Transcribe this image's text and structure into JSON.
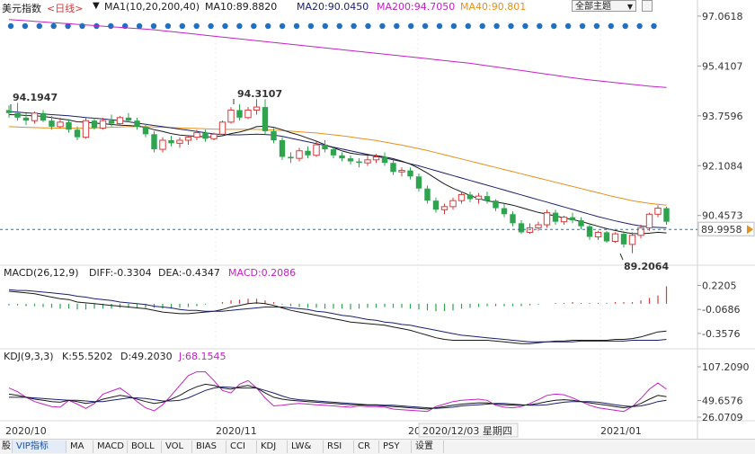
{
  "header": {
    "symbol": "美元指数",
    "period": "<日线>",
    "ma_label": "MA1(10,20,200,40)",
    "ma10": "MA10:89.8820",
    "ma20": "MA20:90.0450",
    "ma200": "MA200:94.7050",
    "ma40": "MA40:90.801",
    "dropdown": "全部主题",
    "dropdown_icon": "triangle-down-icon"
  },
  "colors": {
    "up": "#d63b3b",
    "down": "#2ea44f",
    "ma10": "#1a1a1a",
    "ma20": "#1b1f6e",
    "ma200": "#c520c5",
    "ma40": "#e8901a",
    "dots": "#1f6fc2",
    "current": "#1f6fc2",
    "dif": "#1a1a1a",
    "dea": "#1b1f6e",
    "k": "#1a1a1a",
    "d": "#1b1f6e",
    "j": "#c520c5"
  },
  "price_axis": [
    "97.0618",
    "95.4107",
    "93.7596",
    "92.1084",
    "90.4573"
  ],
  "current_price": "89.9958",
  "annotations": {
    "high1": "94.1947",
    "high2": "94.3107",
    "low": "89.2064"
  },
  "macd_panel": {
    "title": "MACD(26,12,9)",
    "diff": "DIFF:-0.3304",
    "dea": "DEA:-0.4347",
    "macd": "MACD:0.2086",
    "axis": [
      "0.2205",
      "-0.0686",
      "-0.3576"
    ]
  },
  "kdj_panel": {
    "title": "KDJ(9,3,3)",
    "k": "K:55.5202",
    "d": "D:49.2030",
    "j": "J:68.1545",
    "axis": [
      "107.2090",
      "49.6576",
      "26.0709"
    ]
  },
  "x_axis": {
    "labels": [
      "2020/10",
      "2020/11",
      "20",
      "2021/01"
    ],
    "crosshair_label": "2020/12/03 星期四"
  },
  "tabs": [
    "股",
    "VIP指标",
    "MA",
    "MACD",
    "BOLL",
    "VOL",
    "BIAS",
    "CCI",
    "KDJ",
    "LW&",
    "RSI",
    "CR",
    "PSY",
    "设置"
  ],
  "chart_data": {
    "type": "candlestick",
    "y_range": [
      88.9,
      97.06
    ],
    "candles": [
      [
        93.95,
        94.1,
        93.7,
        93.85
      ],
      [
        93.85,
        94.19,
        93.6,
        93.7
      ],
      [
        93.7,
        93.85,
        93.45,
        93.6
      ],
      [
        93.6,
        93.9,
        93.5,
        93.85
      ],
      [
        93.85,
        93.95,
        93.55,
        93.6
      ],
      [
        93.6,
        93.75,
        93.3,
        93.4
      ],
      [
        93.4,
        93.7,
        93.35,
        93.55
      ],
      [
        93.55,
        93.65,
        93.2,
        93.3
      ],
      [
        93.3,
        93.4,
        92.95,
        93.05
      ],
      [
        93.05,
        93.7,
        93.0,
        93.6
      ],
      [
        93.6,
        93.7,
        93.3,
        93.35
      ],
      [
        93.35,
        93.7,
        93.3,
        93.6
      ],
      [
        93.6,
        93.8,
        93.4,
        93.5
      ],
      [
        93.5,
        93.75,
        93.45,
        93.7
      ],
      [
        93.7,
        93.85,
        93.55,
        93.6
      ],
      [
        93.6,
        93.7,
        93.3,
        93.4
      ],
      [
        93.4,
        93.5,
        93.05,
        93.15
      ],
      [
        93.15,
        93.25,
        92.55,
        92.65
      ],
      [
        92.65,
        93.05,
        92.55,
        92.95
      ],
      [
        92.95,
        93.1,
        92.75,
        92.85
      ],
      [
        92.85,
        93.05,
        92.7,
        92.95
      ],
      [
        92.95,
        93.1,
        92.8,
        93.05
      ],
      [
        93.05,
        93.3,
        92.95,
        93.2
      ],
      [
        93.2,
        93.3,
        92.9,
        93.0
      ],
      [
        93.0,
        93.2,
        92.95,
        93.15
      ],
      [
        93.15,
        93.6,
        93.1,
        93.55
      ],
      [
        93.55,
        94.05,
        93.5,
        93.95
      ],
      [
        93.95,
        94.15,
        93.6,
        93.7
      ],
      [
        93.7,
        94.05,
        93.65,
        93.95
      ],
      [
        93.95,
        94.31,
        93.8,
        94.05
      ],
      [
        94.05,
        94.31,
        93.15,
        93.25
      ],
      [
        93.25,
        93.35,
        92.85,
        92.95
      ],
      [
        92.95,
        93.05,
        92.3,
        92.4
      ],
      [
        92.4,
        92.55,
        92.2,
        92.35
      ],
      [
        92.35,
        92.7,
        92.25,
        92.6
      ],
      [
        92.6,
        92.75,
        92.35,
        92.45
      ],
      [
        92.45,
        92.9,
        92.4,
        92.8
      ],
      [
        92.8,
        92.95,
        92.55,
        92.65
      ],
      [
        92.65,
        92.75,
        92.35,
        92.45
      ],
      [
        92.45,
        92.55,
        92.25,
        92.35
      ],
      [
        92.35,
        92.45,
        92.15,
        92.25
      ],
      [
        92.25,
        92.35,
        92.05,
        92.2
      ],
      [
        92.2,
        92.45,
        92.1,
        92.3
      ],
      [
        92.3,
        92.5,
        92.2,
        92.4
      ],
      [
        92.4,
        92.55,
        92.1,
        92.2
      ],
      [
        92.2,
        92.3,
        91.8,
        91.9
      ],
      [
        91.9,
        92.05,
        91.75,
        91.95
      ],
      [
        91.95,
        92.05,
        91.65,
        91.75
      ],
      [
        91.75,
        91.85,
        91.25,
        91.35
      ],
      [
        91.35,
        91.45,
        90.85,
        90.95
      ],
      [
        90.95,
        91.05,
        90.55,
        90.65
      ],
      [
        90.65,
        90.85,
        90.5,
        90.75
      ],
      [
        90.75,
        91.05,
        90.65,
        90.95
      ],
      [
        90.95,
        91.25,
        90.85,
        91.15
      ],
      [
        91.15,
        91.25,
        90.9,
        91.0
      ],
      [
        91.0,
        91.2,
        90.85,
        91.1
      ],
      [
        91.1,
        91.25,
        90.85,
        90.95
      ],
      [
        90.95,
        91.0,
        90.6,
        90.7
      ],
      [
        90.7,
        90.85,
        90.4,
        90.5
      ],
      [
        90.5,
        90.6,
        90.1,
        90.2
      ],
      [
        90.2,
        90.3,
        89.85,
        89.9
      ],
      [
        89.9,
        90.2,
        89.85,
        90.05
      ],
      [
        90.05,
        90.25,
        89.95,
        90.15
      ],
      [
        90.15,
        90.65,
        90.05,
        90.55
      ],
      [
        90.55,
        90.65,
        90.15,
        90.25
      ],
      [
        90.25,
        90.45,
        90.15,
        90.4
      ],
      [
        90.4,
        90.55,
        90.2,
        90.3
      ],
      [
        90.3,
        90.4,
        90.0,
        90.1
      ],
      [
        90.1,
        90.2,
        89.65,
        89.75
      ],
      [
        89.75,
        89.95,
        89.65,
        89.9
      ],
      [
        89.9,
        89.95,
        89.55,
        89.6
      ],
      [
        89.6,
        89.9,
        89.55,
        89.85
      ],
      [
        89.85,
        89.95,
        89.4,
        89.5
      ],
      [
        89.5,
        89.9,
        89.21,
        89.8
      ],
      [
        89.8,
        90.15,
        89.7,
        90.05
      ],
      [
        90.05,
        90.55,
        89.95,
        90.5
      ],
      [
        90.5,
        90.8,
        90.4,
        90.7
      ],
      [
        90.7,
        90.75,
        90.15,
        90.25
      ]
    ],
    "ma10": [
      93.8,
      93.79,
      93.77,
      93.76,
      93.74,
      93.7,
      93.66,
      93.62,
      93.56,
      93.55,
      93.52,
      93.5,
      93.47,
      93.45,
      93.44,
      93.42,
      93.38,
      93.3,
      93.24,
      93.17,
      93.12,
      93.1,
      93.08,
      93.06,
      93.06,
      93.1,
      93.17,
      93.22,
      93.3,
      93.4,
      93.42,
      93.38,
      93.3,
      93.2,
      93.12,
      93.02,
      92.92,
      92.8,
      92.7,
      92.6,
      92.52,
      92.48,
      92.46,
      92.44,
      92.4,
      92.34,
      92.26,
      92.16,
      92.02,
      91.86,
      91.68,
      91.5,
      91.36,
      91.24,
      91.12,
      91.02,
      90.94,
      90.9,
      90.86,
      90.8,
      90.72,
      90.64,
      90.56,
      90.5,
      90.44,
      90.38,
      90.32,
      90.26,
      90.18,
      90.1,
      90.02,
      89.96,
      89.9,
      89.86,
      89.85,
      89.87,
      89.9,
      89.88
    ],
    "ma20": [
      93.9,
      93.88,
      93.86,
      93.84,
      93.82,
      93.8,
      93.78,
      93.76,
      93.73,
      93.7,
      93.68,
      93.66,
      93.63,
      93.6,
      93.56,
      93.52,
      93.48,
      93.44,
      93.4,
      93.36,
      93.32,
      93.28,
      93.24,
      93.2,
      93.16,
      93.14,
      93.13,
      93.13,
      93.14,
      93.15,
      93.14,
      93.12,
      93.08,
      93.02,
      92.96,
      92.9,
      92.84,
      92.78,
      92.72,
      92.66,
      92.6,
      92.54,
      92.48,
      92.42,
      92.36,
      92.3,
      92.24,
      92.17,
      92.1,
      92.02,
      91.94,
      91.86,
      91.78,
      91.7,
      91.62,
      91.54,
      91.46,
      91.38,
      91.3,
      91.22,
      91.14,
      91.06,
      90.98,
      90.9,
      90.82,
      90.74,
      90.66,
      90.58,
      90.5,
      90.42,
      90.35,
      90.28,
      90.22,
      90.16,
      90.11,
      90.08,
      90.06,
      90.05
    ],
    "ma40": [
      93.4,
      93.39,
      93.38,
      93.37,
      93.36,
      93.36,
      93.35,
      93.35,
      93.35,
      93.35,
      93.36,
      93.37,
      93.38,
      93.39,
      93.4,
      93.4,
      93.4,
      93.39,
      93.38,
      93.37,
      93.36,
      93.35,
      93.34,
      93.33,
      93.32,
      93.31,
      93.31,
      93.31,
      93.31,
      93.31,
      93.3,
      93.29,
      93.27,
      93.25,
      93.23,
      93.21,
      93.19,
      93.16,
      93.13,
      93.1,
      93.06,
      93.02,
      92.98,
      92.94,
      92.89,
      92.84,
      92.79,
      92.73,
      92.67,
      92.61,
      92.54,
      92.47,
      92.4,
      92.33,
      92.26,
      92.19,
      92.12,
      92.05,
      91.98,
      91.91,
      91.84,
      91.77,
      91.7,
      91.63,
      91.56,
      91.49,
      91.42,
      91.35,
      91.28,
      91.21,
      91.14,
      91.07,
      91.01,
      90.95,
      90.9,
      90.86,
      90.83,
      90.8
    ],
    "ma200": [
      96.95,
      96.93,
      96.91,
      96.89,
      96.87,
      96.85,
      96.83,
      96.81,
      96.79,
      96.77,
      96.75,
      96.73,
      96.71,
      96.69,
      96.67,
      96.65,
      96.63,
      96.61,
      96.58,
      96.55,
      96.52,
      96.49,
      96.46,
      96.43,
      96.4,
      96.37,
      96.34,
      96.31,
      96.28,
      96.25,
      96.22,
      96.19,
      96.16,
      96.13,
      96.1,
      96.07,
      96.04,
      96.01,
      95.98,
      95.95,
      95.92,
      95.89,
      95.86,
      95.83,
      95.8,
      95.77,
      95.74,
      95.71,
      95.68,
      95.65,
      95.62,
      95.59,
      95.56,
      95.53,
      95.5,
      95.46,
      95.42,
      95.38,
      95.34,
      95.3,
      95.26,
      95.22,
      95.18,
      95.14,
      95.1,
      95.06,
      95.02,
      94.98,
      94.95,
      94.92,
      94.89,
      94.86,
      94.83,
      94.8,
      94.77,
      94.74,
      94.72,
      94.7
    ],
    "macd": {
      "range": [
        -0.5,
        0.28
      ],
      "dif": [
        0.15,
        0.14,
        0.13,
        0.12,
        0.1,
        0.08,
        0.06,
        0.05,
        0.02,
        0.01,
        0.0,
        -0.01,
        -0.02,
        -0.03,
        -0.04,
        -0.05,
        -0.06,
        -0.08,
        -0.1,
        -0.11,
        -0.12,
        -0.12,
        -0.11,
        -0.1,
        -0.09,
        -0.07,
        -0.04,
        -0.02,
        0.0,
        0.01,
        0.0,
        -0.02,
        -0.05,
        -0.08,
        -0.1,
        -0.12,
        -0.14,
        -0.16,
        -0.18,
        -0.2,
        -0.22,
        -0.23,
        -0.24,
        -0.25,
        -0.26,
        -0.28,
        -0.3,
        -0.32,
        -0.35,
        -0.38,
        -0.41,
        -0.43,
        -0.44,
        -0.44,
        -0.44,
        -0.44,
        -0.44,
        -0.45,
        -0.46,
        -0.47,
        -0.48,
        -0.48,
        -0.47,
        -0.46,
        -0.45,
        -0.45,
        -0.44,
        -0.44,
        -0.44,
        -0.44,
        -0.44,
        -0.43,
        -0.43,
        -0.42,
        -0.4,
        -0.37,
        -0.34,
        -0.33
      ],
      "dea": [
        0.17,
        0.16,
        0.16,
        0.15,
        0.14,
        0.13,
        0.12,
        0.11,
        0.09,
        0.08,
        0.06,
        0.05,
        0.04,
        0.02,
        0.01,
        0.0,
        -0.01,
        -0.03,
        -0.04,
        -0.05,
        -0.07,
        -0.08,
        -0.08,
        -0.09,
        -0.09,
        -0.09,
        -0.08,
        -0.07,
        -0.06,
        -0.05,
        -0.04,
        -0.04,
        -0.04,
        -0.05,
        -0.06,
        -0.07,
        -0.09,
        -0.1,
        -0.12,
        -0.14,
        -0.15,
        -0.17,
        -0.19,
        -0.2,
        -0.22,
        -0.23,
        -0.25,
        -0.26,
        -0.28,
        -0.3,
        -0.32,
        -0.34,
        -0.36,
        -0.38,
        -0.39,
        -0.4,
        -0.41,
        -0.42,
        -0.43,
        -0.44,
        -0.45,
        -0.46,
        -0.46,
        -0.46,
        -0.46,
        -0.46,
        -0.46,
        -0.45,
        -0.45,
        -0.45,
        -0.45,
        -0.45,
        -0.45,
        -0.44,
        -0.44,
        -0.44,
        -0.44,
        -0.43
      ],
      "hist": [
        -0.02,
        -0.02,
        -0.03,
        -0.03,
        -0.04,
        -0.05,
        -0.06,
        -0.06,
        -0.07,
        -0.07,
        -0.06,
        -0.06,
        -0.06,
        -0.05,
        -0.05,
        -0.05,
        -0.05,
        -0.05,
        -0.06,
        -0.06,
        -0.05,
        -0.04,
        -0.03,
        -0.01,
        0.0,
        0.02,
        0.04,
        0.05,
        0.06,
        0.06,
        0.04,
        0.02,
        -0.01,
        -0.03,
        -0.04,
        -0.05,
        -0.05,
        -0.06,
        -0.06,
        -0.06,
        -0.07,
        -0.06,
        -0.05,
        -0.05,
        -0.04,
        -0.05,
        -0.05,
        -0.06,
        -0.07,
        -0.08,
        -0.09,
        -0.09,
        -0.08,
        -0.06,
        -0.05,
        -0.04,
        -0.03,
        -0.03,
        -0.03,
        -0.03,
        -0.03,
        -0.02,
        -0.01,
        0.0,
        0.01,
        0.01,
        0.02,
        0.01,
        0.01,
        0.01,
        0.01,
        0.02,
        0.02,
        0.02,
        0.04,
        0.07,
        0.1,
        0.21
      ]
    },
    "kdj": {
      "range": [
        20,
        110
      ],
      "k": [
        60,
        58,
        55,
        52,
        50,
        48,
        47,
        50,
        48,
        45,
        47,
        52,
        55,
        58,
        56,
        52,
        48,
        45,
        47,
        52,
        58,
        66,
        72,
        76,
        74,
        70,
        68,
        72,
        74,
        70,
        62,
        55,
        52,
        50,
        49,
        48,
        47,
        46,
        45,
        44,
        43,
        43,
        42,
        42,
        41,
        40,
        39,
        38,
        37,
        36,
        38,
        40,
        42,
        44,
        45,
        46,
        46,
        44,
        43,
        42,
        42,
        43,
        45,
        48,
        50,
        51,
        50,
        48,
        46,
        44,
        42,
        40,
        38,
        40,
        45,
        52,
        58,
        56
      ],
      "d": [
        55,
        55,
        55,
        54,
        53,
        52,
        51,
        50,
        50,
        49,
        48,
        48,
        50,
        52,
        54,
        54,
        53,
        51,
        49,
        49,
        50,
        54,
        60,
        66,
        70,
        72,
        71,
        70,
        70,
        70,
        66,
        62,
        57,
        53,
        51,
        50,
        49,
        48,
        47,
        46,
        45,
        44,
        43,
        43,
        42,
        42,
        41,
        40,
        39,
        38,
        37,
        38,
        39,
        41,
        42,
        43,
        44,
        45,
        45,
        44,
        43,
        42,
        42,
        43,
        45,
        47,
        48,
        48,
        48,
        47,
        45,
        43,
        41,
        40,
        41,
        44,
        48,
        50
      ],
      "j": [
        70,
        64,
        55,
        48,
        44,
        40,
        39,
        50,
        44,
        37,
        45,
        60,
        65,
        70,
        60,
        48,
        38,
        33,
        43,
        58,
        74,
        90,
        96,
        96,
        82,
        66,
        62,
        76,
        82,
        70,
        54,
        41,
        42,
        44,
        45,
        44,
        43,
        42,
        41,
        40,
        39,
        41,
        40,
        40,
        39,
        36,
        35,
        34,
        33,
        32,
        40,
        44,
        48,
        50,
        51,
        52,
        50,
        42,
        39,
        38,
        40,
        45,
        51,
        58,
        60,
        59,
        54,
        48,
        42,
        38,
        36,
        34,
        32,
        40,
        53,
        68,
        78,
        68
      ]
    }
  }
}
